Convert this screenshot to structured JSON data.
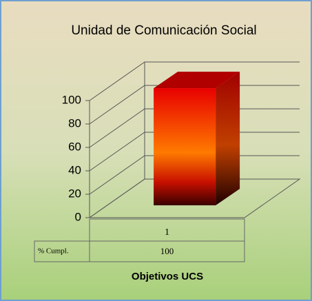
{
  "chart_data": {
    "type": "bar3d",
    "title": "Unidad de Comunicación Social",
    "categories": [
      "1"
    ],
    "series": [
      {
        "name": "% Cumpl.",
        "color": "#ff3000",
        "values": [
          100
        ]
      }
    ],
    "x_label": "Objetivos UCS",
    "ylim": [
      0,
      100
    ],
    "yticks": [
      0,
      20,
      40,
      60,
      80,
      100
    ],
    "grid": true
  }
}
